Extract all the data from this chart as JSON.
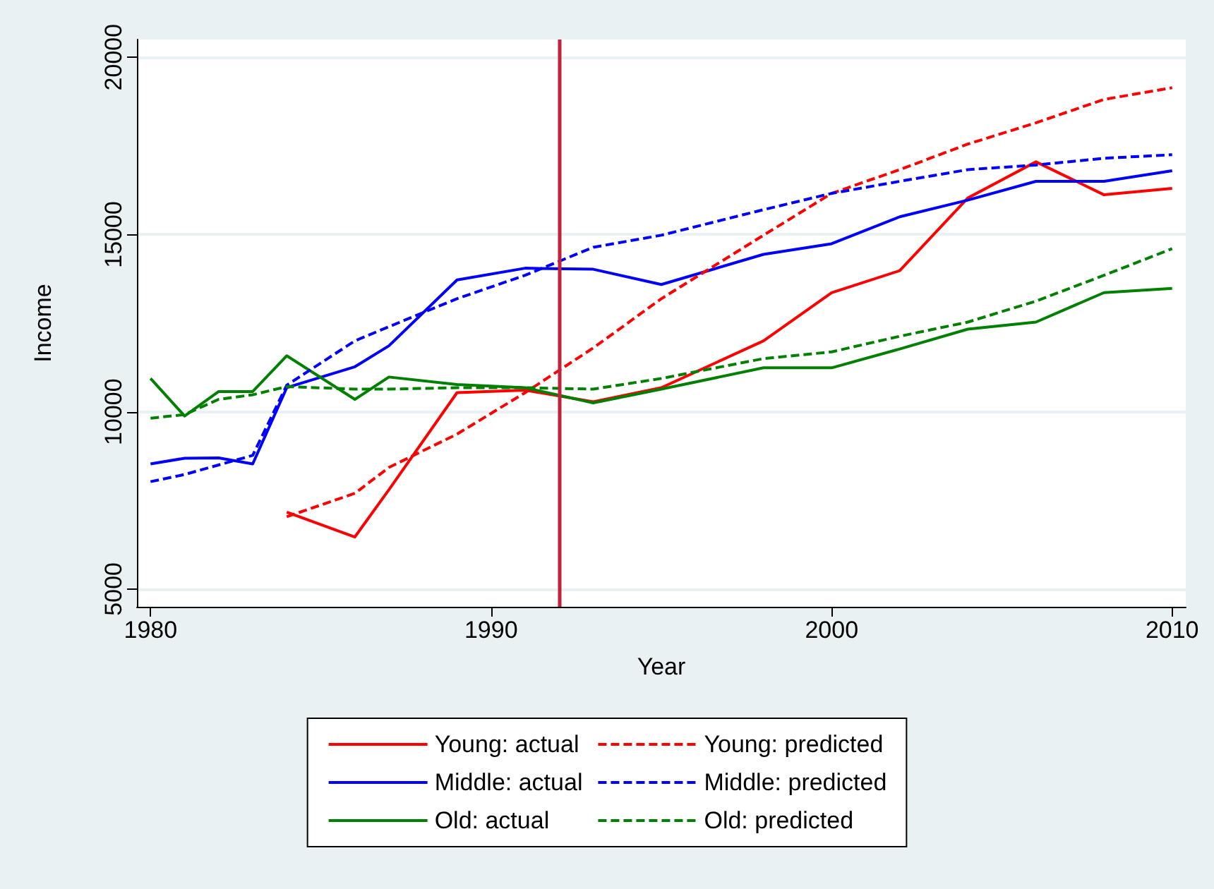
{
  "chart_data": {
    "type": "line",
    "xlabel": "Year",
    "ylabel": "Income",
    "x": [
      1980,
      1981,
      1982,
      1983,
      1984,
      1986,
      1987,
      1989,
      1991,
      1993,
      1995,
      1998,
      2000,
      2002,
      2004,
      2006,
      2008,
      2010
    ],
    "series": [
      {
        "name": "Young: actual",
        "color": "#ff0000",
        "line_style": "solid",
        "values": [
          null,
          null,
          null,
          null,
          7170,
          6470,
          7800,
          10540,
          10610,
          10280,
          10680,
          12000,
          13360,
          13980,
          16030,
          17050,
          16120,
          16300
        ]
      },
      {
        "name": "Middle: actual",
        "color": "#0000ff",
        "line_style": "solid",
        "values": [
          8530,
          8690,
          8700,
          8530,
          10680,
          11270,
          11860,
          13720,
          14050,
          14020,
          13590,
          14440,
          14740,
          15500,
          15970,
          16500,
          16500,
          16800
        ]
      },
      {
        "name": "Old: actual",
        "color": "#008000",
        "line_style": "solid",
        "values": [
          10940,
          9880,
          10570,
          10570,
          11580,
          10350,
          10980,
          10770,
          10680,
          10250,
          10640,
          11240,
          11240,
          11770,
          12330,
          12530,
          13360,
          13480
        ]
      },
      {
        "name": "Young: predicted",
        "color": "#ff0000",
        "line_style": "dashed",
        "values": [
          null,
          null,
          null,
          null,
          7040,
          7700,
          8430,
          9370,
          10540,
          11800,
          13190,
          14980,
          16160,
          16830,
          17550,
          18150,
          18810,
          19140
        ]
      },
      {
        "name": "Middle: predicted",
        "color": "#0000ff",
        "line_style": "dashed",
        "values": [
          8030,
          8230,
          8500,
          8770,
          10750,
          12000,
          12400,
          13190,
          13850,
          14640,
          14980,
          15700,
          16160,
          16500,
          16830,
          16960,
          17150,
          17250
        ]
      },
      {
        "name": "Old: predicted",
        "color": "#008000",
        "line_style": "dashed",
        "values": [
          9820,
          9920,
          10350,
          10480,
          10710,
          10640,
          10640,
          10680,
          10680,
          10640,
          10940,
          11500,
          11690,
          12130,
          12530,
          13120,
          13850,
          14600
        ]
      }
    ],
    "xlim": [
      1979.6,
      2010.4
    ],
    "xticks": [
      1980,
      1990,
      2000,
      2010
    ],
    "ylim": [
      4500,
      20500
    ],
    "yticks": [
      5000,
      10000,
      15000,
      20000
    ],
    "ref_lines": [
      {
        "axis": "x",
        "value": 1992,
        "color": "#c0243c"
      }
    ],
    "grid": "y",
    "legend": "bottom",
    "marker": "none"
  }
}
